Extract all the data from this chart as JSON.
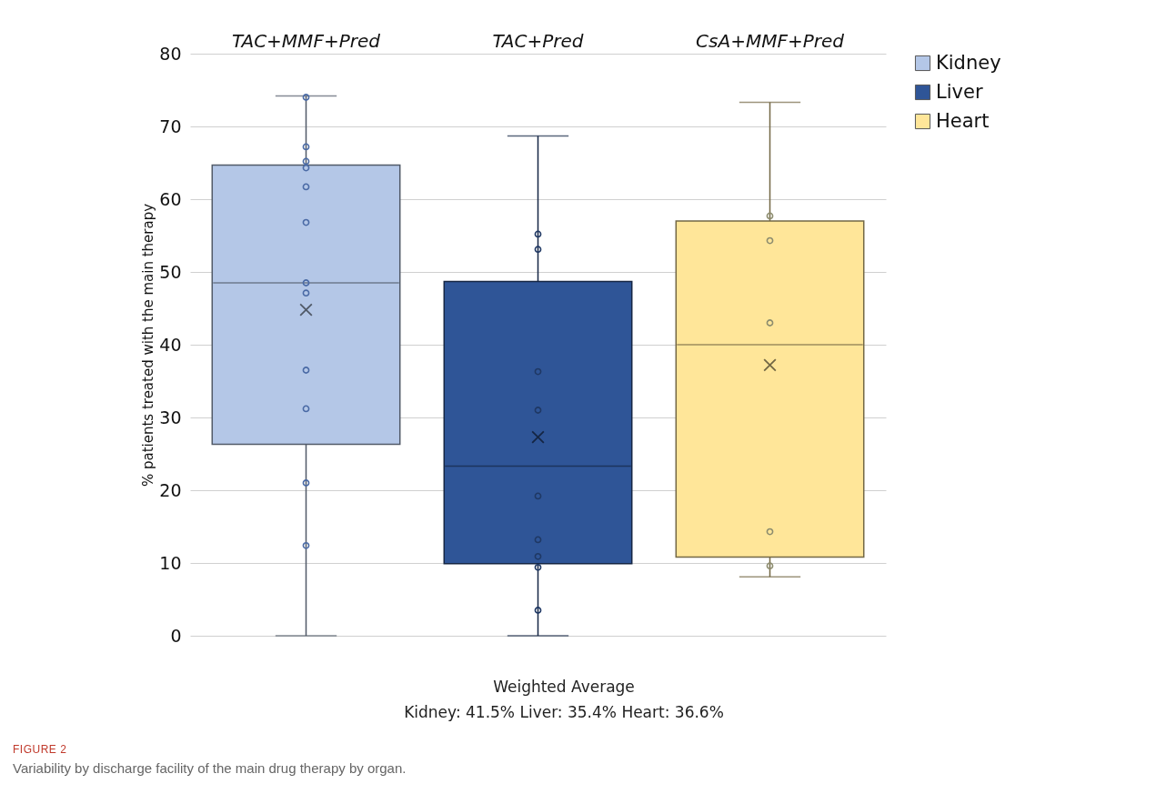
{
  "chart_data": {
    "type": "box",
    "categories": [
      "TAC+MMF+Pred",
      "TAC+Pred",
      "CsA+MMF+Pred"
    ],
    "ylabel": "% patients treated with the main therapy",
    "ylim": [
      0,
      80
    ],
    "yticks": [
      0,
      10,
      20,
      30,
      40,
      50,
      60,
      70,
      80
    ],
    "grid": "y",
    "legend": "right",
    "series": [
      {
        "name": "Kidney",
        "color": "#b4c7e7",
        "boxes": [
          {
            "low": 0,
            "q1": 26.3,
            "median": 48.5,
            "q3": 64.7,
            "high": 74.2,
            "mean": 44.8
          },
          null,
          null
        ]
      },
      {
        "name": "Liver",
        "color": "#2f5597",
        "boxes": [
          null,
          {
            "low": 0,
            "q1": 9.9,
            "median": 23.3,
            "q3": 48.7,
            "high": 68.7,
            "mean": 27.3
          },
          null
        ]
      },
      {
        "name": "Heart",
        "color": "#ffe699",
        "boxes": [
          null,
          null,
          {
            "low": 8.1,
            "q1": 10.8,
            "median": 40.0,
            "q3": 57.0,
            "high": 73.3,
            "mean": 37.2
          }
        ]
      },
      {
        "type": "scatter",
        "color": "#4a6aa5",
        "x": [
          "TAC+MMF+Pred",
          "TAC+MMF+Pred",
          "TAC+MMF+Pred",
          "TAC+MMF+Pred",
          "TAC+MMF+Pred",
          "TAC+MMF+Pred",
          "TAC+MMF+Pred",
          "TAC+MMF+Pred",
          "TAC+MMF+Pred",
          "TAC+MMF+Pred",
          "TAC+MMF+Pred",
          "TAC+MMF+Pred"
        ],
        "values": [
          74,
          67.2,
          65.2,
          64.3,
          61.7,
          56.8,
          48.5,
          47.1,
          36.5,
          31.2,
          21,
          12.4
        ]
      },
      {
        "type": "scatter",
        "color": "#1f3864",
        "x": [
          "TAC+Pred",
          "TAC+Pred",
          "TAC+Pred",
          "TAC+Pred",
          "TAC+Pred",
          "TAC+Pred",
          "TAC+Pred",
          "TAC+Pred",
          "TAC+Pred"
        ],
        "values": [
          55.2,
          53.1,
          36.3,
          31,
          19.2,
          13.2,
          10.9,
          9.4,
          3.5
        ]
      },
      {
        "type": "scatter",
        "color": "#8c8c6e",
        "x": [
          "CsA+MMF+Pred",
          "CsA+MMF+Pred",
          "CsA+MMF+Pred",
          "CsA+MMF+Pred",
          "CsA+MMF+Pred"
        ],
        "values": [
          57.7,
          54.3,
          43,
          14.3,
          9.6
        ]
      }
    ],
    "annotations": [
      "Weighted Average",
      "Kidney: 41.5% Liver: 35.4% Heart: 36.6%",
      "FIGURE 2",
      "Variability by discharge facility of the main drug therapy by organ."
    ]
  }
}
